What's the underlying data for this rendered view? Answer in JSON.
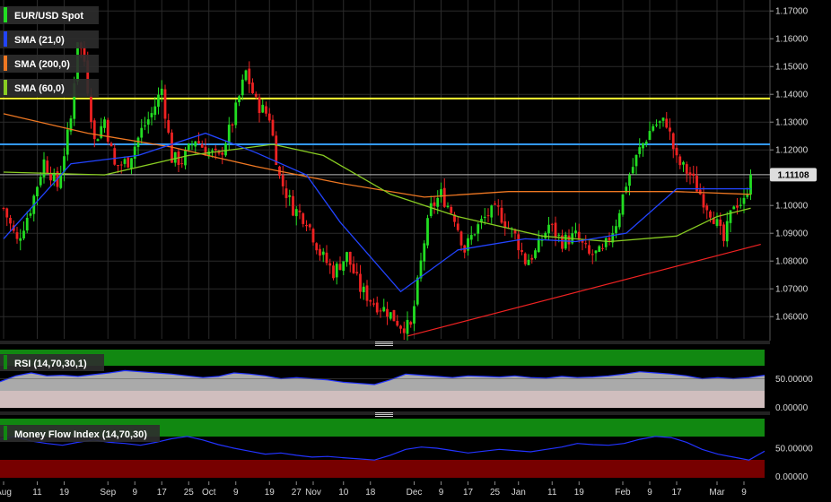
{
  "colors": {
    "background": "#000000",
    "grid": "#2b2b2b",
    "axis_text": "#d8d8d8",
    "up_candle": "#22dd22",
    "down_candle": "#ee2222",
    "sma21": "#2244ff",
    "sma200": "#ee7722",
    "sma60": "#88cc22",
    "resistance": "#ffff33",
    "support_blue": "#3399ff",
    "trendline": "#ee2222",
    "rsi_fill": "#c8c8c8",
    "rsi_upper": "#118811",
    "rsi_lower": "#ff8888",
    "mfi_upper": "#118811",
    "mfi_lower": "#770000",
    "price_tag": "#dddddd"
  },
  "legend": {
    "price": "EUR/USD Spot",
    "sma21": "SMA (21,0)",
    "sma200": "SMA (200,0)",
    "sma60": "SMA (60,0)",
    "rsi": "RSI (14,70,30,1)",
    "mfi": "Money Flow Index (14,70,30)"
  },
  "chart_data": [
    {
      "type": "candlestick",
      "title": "EUR/USD Spot",
      "yticks": [
        "1.17000",
        "1.16000",
        "1.15000",
        "1.14000",
        "1.13000",
        "1.12000",
        "1.11000",
        "1.10000",
        "1.09000",
        "1.08000",
        "1.07000",
        "1.06000"
      ],
      "ylim": [
        1.052,
        1.172
      ],
      "xticks": [
        {
          "label": "Aug",
          "day": 0
        },
        {
          "label": "11",
          "day": 10
        },
        {
          "label": "19",
          "day": 18
        },
        {
          "label": "Sep",
          "day": 31
        },
        {
          "label": "9",
          "day": 39
        },
        {
          "label": "17",
          "day": 47
        },
        {
          "label": "25",
          "day": 55
        },
        {
          "label": "Oct",
          "day": 61
        },
        {
          "label": "9",
          "day": 69
        },
        {
          "label": "19",
          "day": 79
        },
        {
          "label": "27",
          "day": 87
        },
        {
          "label": "Nov",
          "day": 92
        },
        {
          "label": "10",
          "day": 101
        },
        {
          "label": "18",
          "day": 109
        },
        {
          "label": "Dec",
          "day": 122
        },
        {
          "label": "9",
          "day": 130
        },
        {
          "label": "17",
          "day": 138
        },
        {
          "label": "25",
          "day": 146
        },
        {
          "label": "Jan",
          "day": 153
        },
        {
          "label": "11",
          "day": 163
        },
        {
          "label": "19",
          "day": 171
        },
        {
          "label": "Feb",
          "day": 184
        },
        {
          "label": "9",
          "day": 192
        },
        {
          "label": "17",
          "day": 200
        },
        {
          "label": "Mar",
          "day": 212
        },
        {
          "label": "9",
          "day": 220
        }
      ],
      "last_price": "1.11108",
      "price_keypoints": [
        [
          0,
          1.099
        ],
        [
          4,
          1.087
        ],
        [
          8,
          1.099
        ],
        [
          12,
          1.116
        ],
        [
          16,
          1.107
        ],
        [
          20,
          1.131
        ],
        [
          22,
          1.16
        ],
        [
          24,
          1.152
        ],
        [
          27,
          1.123
        ],
        [
          30,
          1.131
        ],
        [
          33,
          1.114
        ],
        [
          37,
          1.116
        ],
        [
          41,
          1.127
        ],
        [
          44,
          1.133
        ],
        [
          47,
          1.142
        ],
        [
          50,
          1.117
        ],
        [
          53,
          1.116
        ],
        [
          57,
          1.124
        ],
        [
          60,
          1.12
        ],
        [
          64,
          1.117
        ],
        [
          68,
          1.13
        ],
        [
          72,
          1.148
        ],
        [
          75,
          1.137
        ],
        [
          79,
          1.132
        ],
        [
          82,
          1.11
        ],
        [
          86,
          1.099
        ],
        [
          90,
          1.095
        ],
        [
          94,
          1.083
        ],
        [
          98,
          1.076
        ],
        [
          102,
          1.082
        ],
        [
          106,
          1.07
        ],
        [
          110,
          1.065
        ],
        [
          114,
          1.062
        ],
        [
          118,
          1.057
        ],
        [
          121,
          1.056
        ],
        [
          125,
          1.087
        ],
        [
          127,
          1.099
        ],
        [
          130,
          1.104
        ],
        [
          134,
          1.096
        ],
        [
          137,
          1.084
        ],
        [
          140,
          1.091
        ],
        [
          144,
          1.097
        ],
        [
          147,
          1.098
        ],
        [
          150,
          1.092
        ],
        [
          152,
          1.089
        ],
        [
          155,
          1.08
        ],
        [
          158,
          1.083
        ],
        [
          162,
          1.093
        ],
        [
          166,
          1.087
        ],
        [
          170,
          1.089
        ],
        [
          174,
          1.082
        ],
        [
          178,
          1.083
        ],
        [
          182,
          1.094
        ],
        [
          185,
          1.108
        ],
        [
          189,
          1.12
        ],
        [
          193,
          1.129
        ],
        [
          197,
          1.13
        ],
        [
          200,
          1.116
        ],
        [
          204,
          1.111
        ],
        [
          208,
          1.102
        ],
        [
          211,
          1.096
        ],
        [
          214,
          1.087
        ],
        [
          217,
          1.101
        ],
        [
          220,
          1.101
        ],
        [
          222,
          1.1111
        ]
      ],
      "yellow_line": 1.1385,
      "blue_line": 1.122,
      "trend_line": [
        [
          120,
          1.053
        ],
        [
          225,
          1.086
        ]
      ],
      "sma21_points": [
        [
          0,
          1.088
        ],
        [
          20,
          1.115
        ],
        [
          40,
          1.118
        ],
        [
          60,
          1.126
        ],
        [
          75,
          1.119
        ],
        [
          90,
          1.111
        ],
        [
          100,
          1.094
        ],
        [
          118,
          1.069
        ],
        [
          135,
          1.084
        ],
        [
          155,
          1.088
        ],
        [
          170,
          1.087
        ],
        [
          185,
          1.09
        ],
        [
          200,
          1.106
        ],
        [
          212,
          1.106
        ],
        [
          222,
          1.106
        ]
      ],
      "sma200_points": [
        [
          0,
          1.133
        ],
        [
          25,
          1.126
        ],
        [
          50,
          1.121
        ],
        [
          75,
          1.114
        ],
        [
          100,
          1.108
        ],
        [
          125,
          1.103
        ],
        [
          150,
          1.105
        ],
        [
          175,
          1.105
        ],
        [
          200,
          1.105
        ],
        [
          222,
          1.104
        ]
      ],
      "sma60_points": [
        [
          0,
          1.112
        ],
        [
          30,
          1.111
        ],
        [
          55,
          1.118
        ],
        [
          80,
          1.122
        ],
        [
          95,
          1.118
        ],
        [
          115,
          1.104
        ],
        [
          135,
          1.096
        ],
        [
          160,
          1.089
        ],
        [
          180,
          1.087
        ],
        [
          200,
          1.089
        ],
        [
          212,
          1.096
        ],
        [
          222,
          1.099
        ]
      ]
    },
    {
      "type": "area",
      "title": "RSI (14,70,30,1)",
      "yticks": [
        "50.00000",
        "0.00000"
      ],
      "ylim": [
        0,
        100
      ],
      "values": [
        45,
        55,
        60,
        55,
        56,
        54,
        57,
        60,
        64,
        62,
        60,
        58,
        55,
        52,
        54,
        60,
        58,
        55,
        50,
        52,
        50,
        48,
        44,
        42,
        40,
        48,
        58,
        56,
        54,
        52,
        55,
        54,
        53,
        55,
        52,
        51,
        54,
        52,
        53,
        55,
        58,
        62,
        60,
        58,
        55,
        50,
        52,
        50,
        52,
        56
      ]
    },
    {
      "type": "line",
      "title": "Money Flow Index (14,70,30)",
      "yticks": [
        "50.00000",
        "0.00000"
      ],
      "ylim": [
        0,
        100
      ],
      "values": [
        65,
        70,
        62,
        58,
        55,
        60,
        64,
        60,
        58,
        55,
        60,
        66,
        70,
        64,
        56,
        50,
        45,
        40,
        42,
        38,
        35,
        36,
        34,
        32,
        30,
        38,
        48,
        52,
        50,
        46,
        42,
        45,
        48,
        46,
        44,
        48,
        52,
        58,
        56,
        55,
        58,
        65,
        70,
        68,
        60,
        48,
        40,
        35,
        30,
        45
      ]
    }
  ]
}
